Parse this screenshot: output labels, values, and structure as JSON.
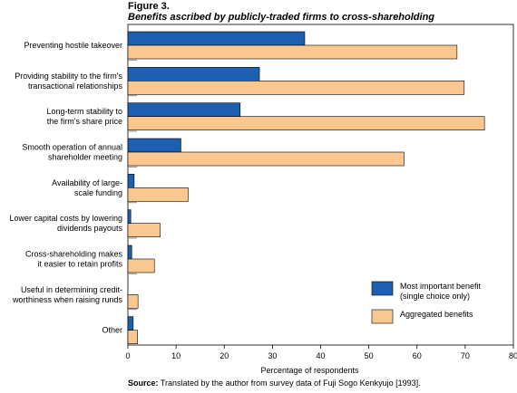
{
  "figure_label": "Figure 3.",
  "subtitle": "Benefits ascribed by publicly-traded firms to cross-shareholding",
  "source_prefix": "Source:",
  "source_text": "Translated by the author from survey data of Fuji Sogo Kenkyujo [1993].",
  "colors": {
    "series1": "#1d5fb0",
    "series2": "#f9c78f",
    "border": "#000000"
  },
  "chart_data": {
    "type": "bar",
    "orientation": "horizontal",
    "categories": [
      [
        "Preventing hostile takeover"
      ],
      [
        "Providing stability to the firm's",
        "transactional relationships"
      ],
      [
        "Long-term stability to",
        "the firm's share price"
      ],
      [
        "Smooth operation of annual",
        "shareholder meeting"
      ],
      [
        "Availability of large-",
        "scale funding"
      ],
      [
        "Lower capital costs by lowering",
        "dividends payouts"
      ],
      [
        "Cross-shareholding makes",
        "it easier to retain profits"
      ],
      [
        "Useful in determining credit-",
        "worthiness when raising runds"
      ],
      [
        "Other"
      ]
    ],
    "series": [
      {
        "name": "Most important benefit (single choice only)",
        "legend_lines": [
          "Most important benefit",
          "(single choice only)"
        ],
        "color": "#1d5fb0",
        "values": [
          36.7,
          27.3,
          23.3,
          11.0,
          1.3,
          0.6,
          0.8,
          0.0,
          1.1
        ]
      },
      {
        "name": "Aggregated benefits",
        "legend_lines": [
          "Aggregated benefits"
        ],
        "color": "#f9c78f",
        "values": [
          68.3,
          69.8,
          74.0,
          57.3,
          12.5,
          6.7,
          5.5,
          2.1,
          2.0
        ]
      }
    ],
    "xlabel": "Percentage of respondents",
    "xlim": [
      0,
      80
    ],
    "xticks": [
      0,
      10,
      20,
      30,
      40,
      50,
      60,
      70,
      80
    ],
    "legend_position": "bottom-right",
    "grid": false
  }
}
